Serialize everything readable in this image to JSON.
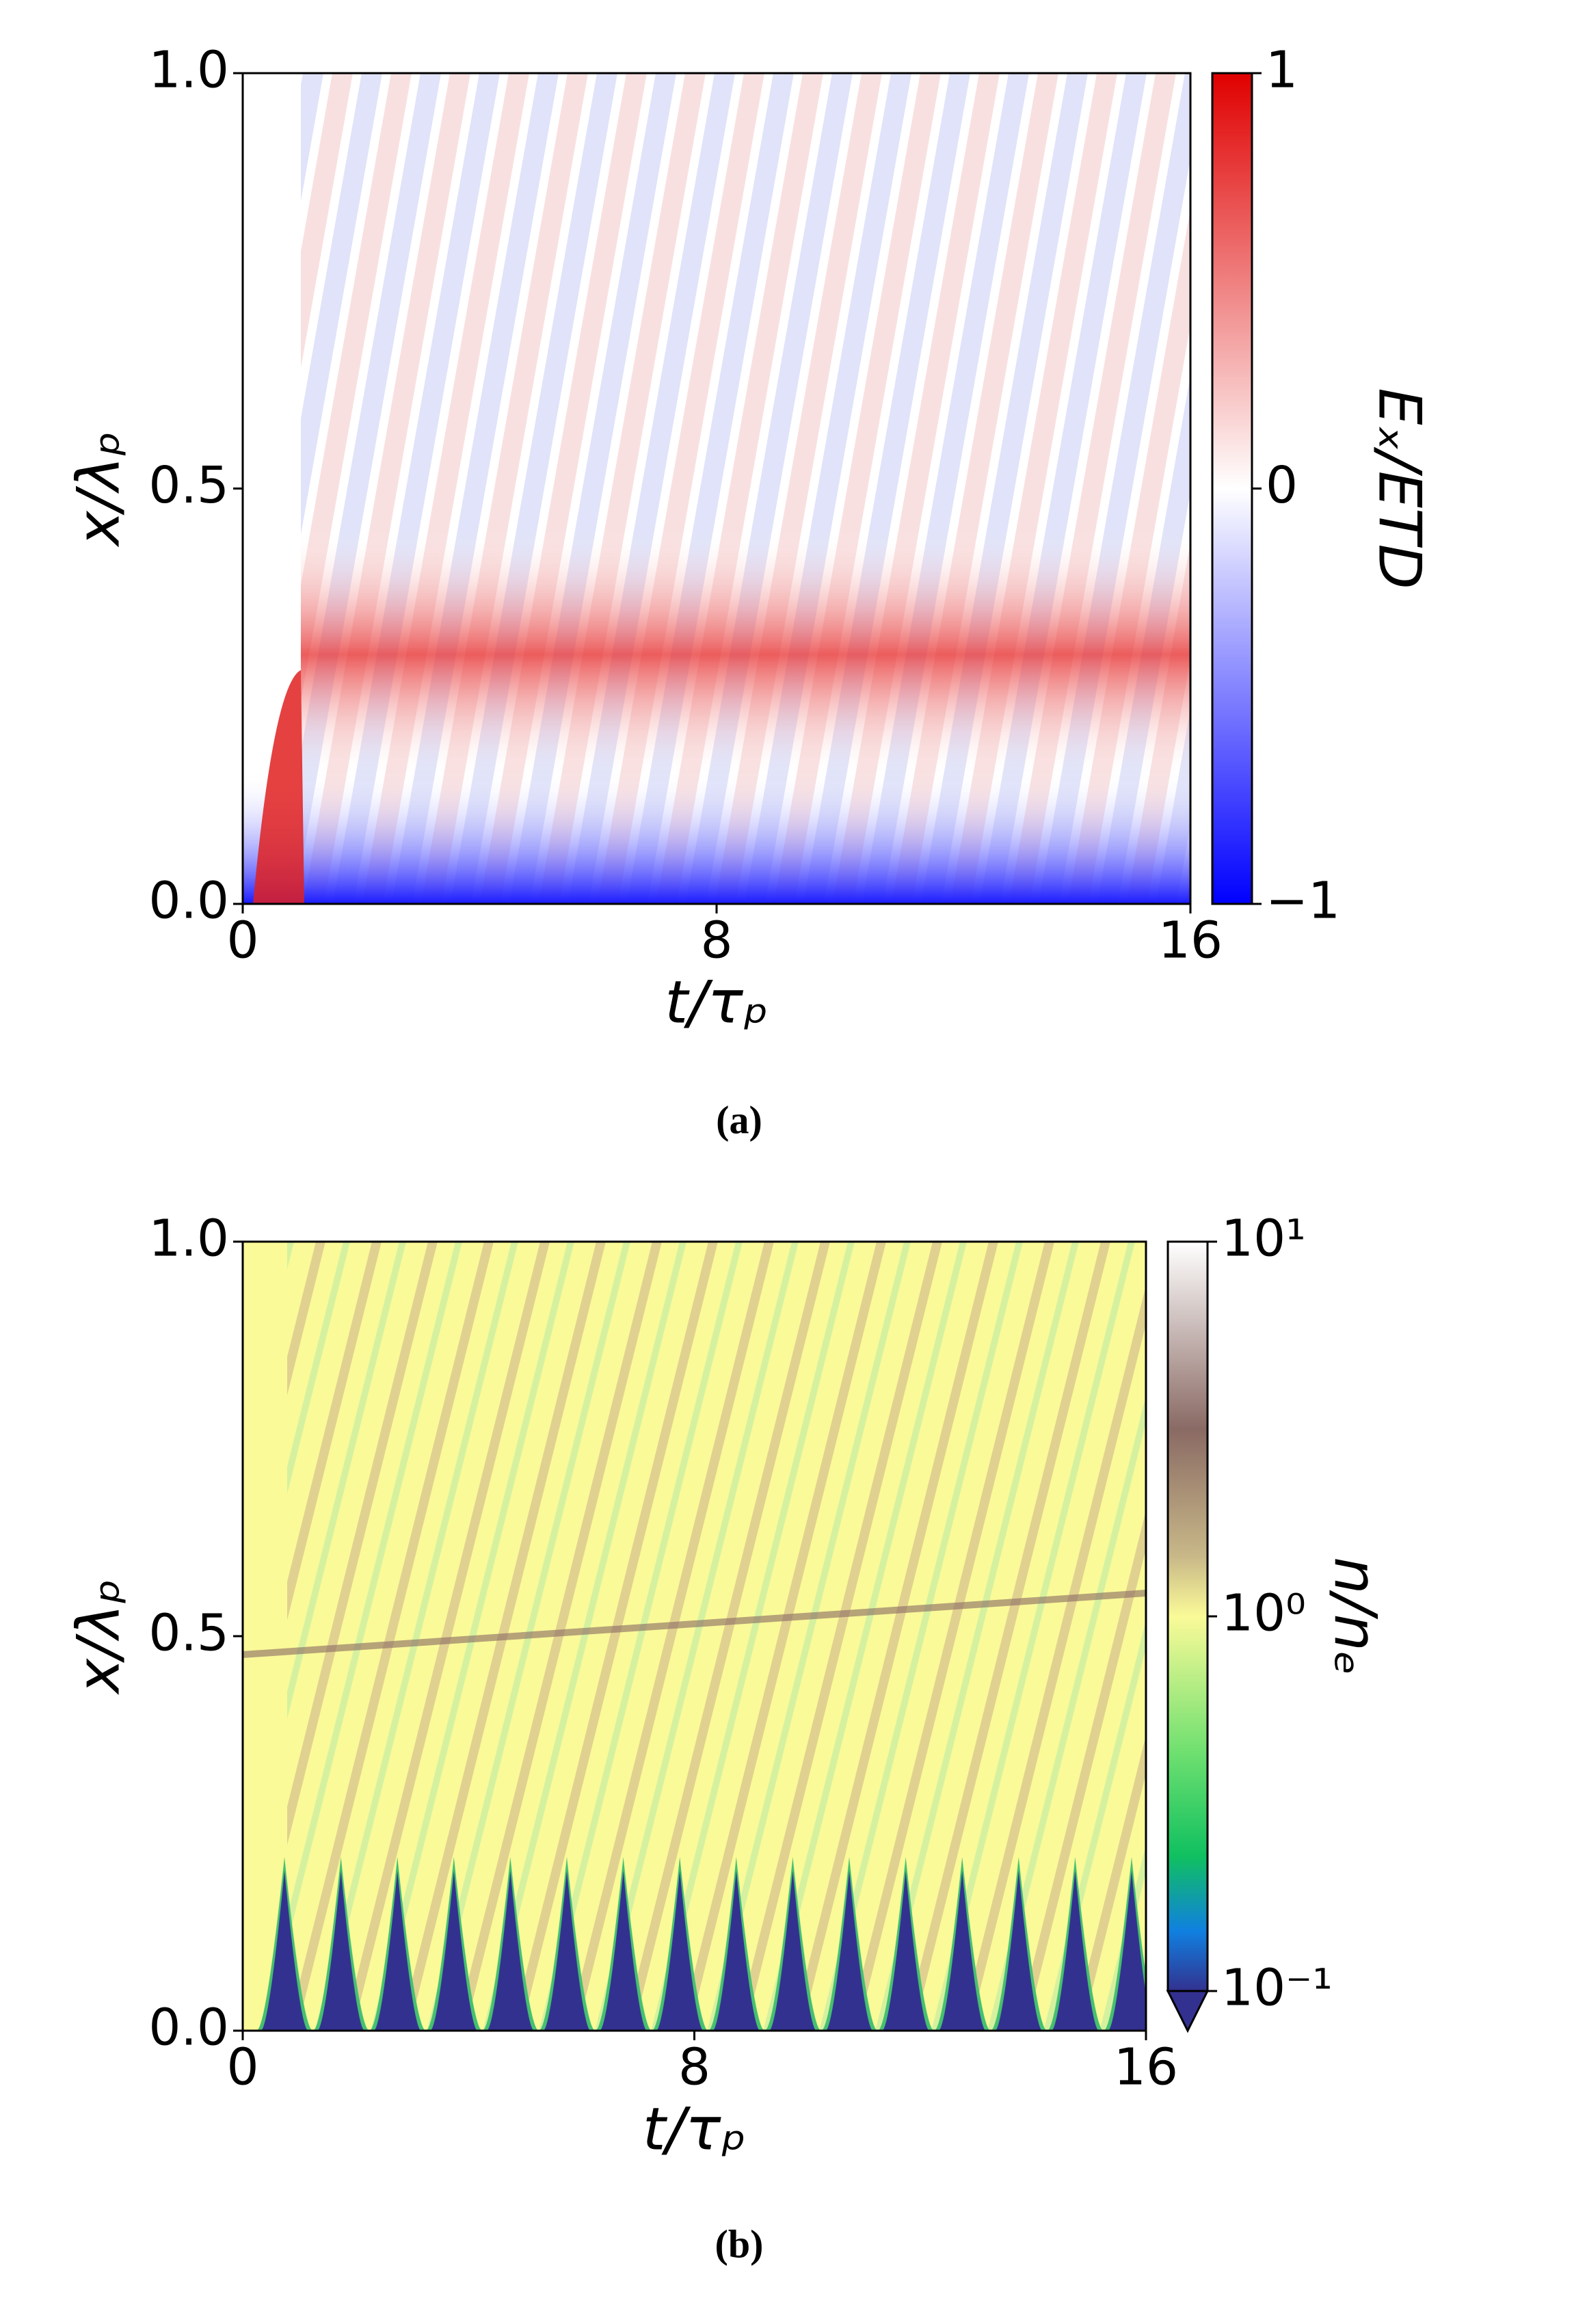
{
  "chart_data": [
    {
      "type": "heatmap",
      "caption": "(a)",
      "xlabel": "t/τₚ",
      "ylabel": "x/λₚ",
      "xlim": [
        0,
        16
      ],
      "xticks": [
        0,
        8,
        16
      ],
      "ylim": [
        0,
        1
      ],
      "yticks": [
        {
          "value": 0,
          "label": "0.0"
        },
        {
          "value": 0.5,
          "label": "0.5"
        },
        {
          "value": 1,
          "label": "1.0"
        }
      ],
      "colorbar": {
        "label": "Eₓ/ETD",
        "lim": [
          -1,
          1
        ],
        "ticks": [
          1,
          0,
          {
            "value": -1,
            "label": "−1"
          }
        ],
        "log": false
      }
    },
    {
      "type": "heatmap",
      "caption": "(b)",
      "xlabel": "t/τₚ",
      "ylabel": "x/λₚ",
      "xlim": [
        0,
        16
      ],
      "xticks": [
        0,
        8,
        16
      ],
      "ylim": [
        0,
        1
      ],
      "yticks": [
        {
          "value": 0,
          "label": "0.0"
        },
        {
          "value": 0.5,
          "label": "0.5"
        },
        {
          "value": 1,
          "label": "1.0"
        }
      ],
      "colorbar": {
        "label": "n/nₑ",
        "lim": [
          0.1,
          10
        ],
        "ticks": [
          {
            "value": 10,
            "label": "10¹"
          },
          {
            "value": 1,
            "label": "10⁰"
          },
          {
            "value": 0.1,
            "label": "10⁻¹"
          }
        ],
        "log": true
      }
    }
  ]
}
